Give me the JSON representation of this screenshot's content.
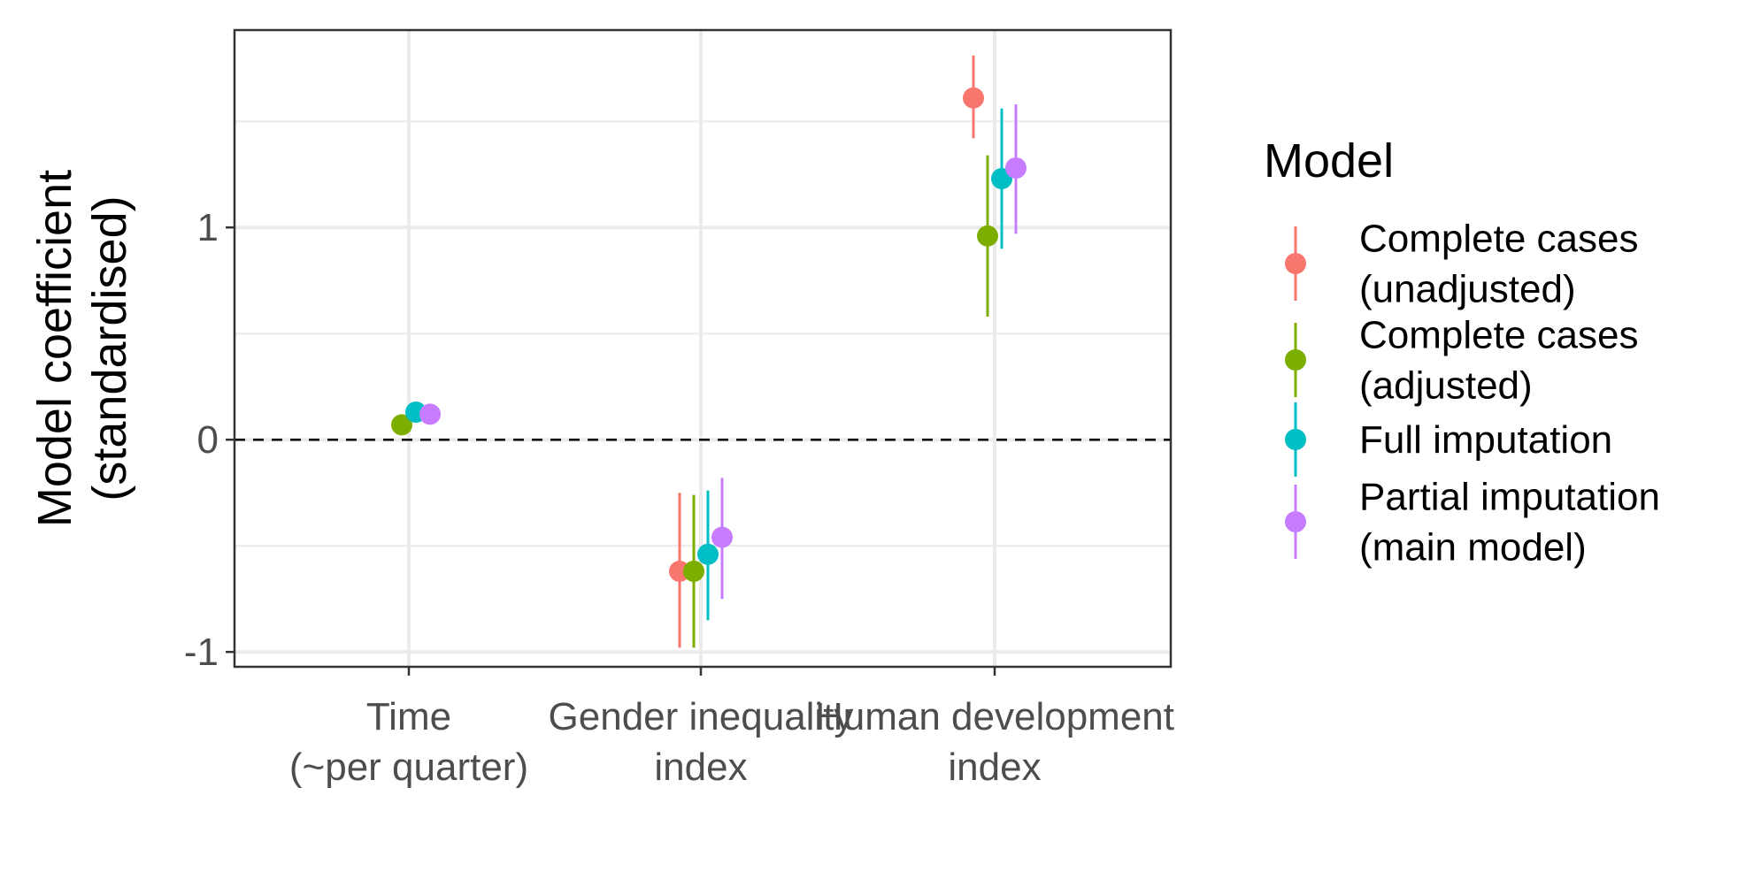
{
  "chart_data": {
    "type": "scatter",
    "subtype": "pointrange",
    "ylabel_lines": [
      "Model coefficient",
      "(standardised)"
    ],
    "categories": [
      {
        "lines": [
          "Time",
          "(~per quarter)"
        ]
      },
      {
        "lines": [
          "Gender inequality",
          "index"
        ]
      },
      {
        "lines": [
          "Human development",
          "index"
        ]
      }
    ],
    "ylim": [
      -1.07,
      1.93
    ],
    "yticks": [
      -1,
      0,
      1
    ],
    "ytick_labels": [
      "-1",
      "0",
      "1"
    ],
    "reference_line": {
      "y": 0,
      "style": "dashed"
    },
    "grid": true,
    "legend": {
      "title": "Model",
      "position": "right",
      "entries": [
        {
          "lines": [
            "Complete cases",
            "(unadjusted)"
          ]
        },
        {
          "lines": [
            "Complete cases",
            "(adjusted)"
          ]
        },
        {
          "lines": [
            "Full imputation"
          ]
        },
        {
          "lines": [
            "Partial imputation",
            "(main model)"
          ]
        }
      ]
    },
    "series": [
      {
        "name": "Complete cases (unadjusted)",
        "color": "#F8766D",
        "points": [
          null,
          {
            "y": -0.62,
            "lo": -0.98,
            "hi": -0.25
          },
          {
            "y": 1.61,
            "lo": 1.42,
            "hi": 1.81
          }
        ]
      },
      {
        "name": "Complete cases (adjusted)",
        "color": "#7CAE00",
        "points": [
          {
            "y": 0.07,
            "lo": 0.06,
            "hi": 0.08
          },
          {
            "y": -0.62,
            "lo": -0.98,
            "hi": -0.26
          },
          {
            "y": 0.96,
            "lo": 0.58,
            "hi": 1.34
          }
        ]
      },
      {
        "name": "Full imputation",
        "color": "#00BFC4",
        "points": [
          {
            "y": 0.13,
            "lo": 0.12,
            "hi": 0.14
          },
          {
            "y": -0.54,
            "lo": -0.85,
            "hi": -0.24
          },
          {
            "y": 1.23,
            "lo": 0.9,
            "hi": 1.56
          }
        ]
      },
      {
        "name": "Partial imputation (main model)",
        "color": "#C77CFF",
        "points": [
          {
            "y": 0.12,
            "lo": 0.11,
            "hi": 0.13
          },
          {
            "y": -0.46,
            "lo": -0.75,
            "hi": -0.18
          },
          {
            "y": 1.28,
            "lo": 0.97,
            "hi": 1.58
          }
        ]
      }
    ]
  }
}
